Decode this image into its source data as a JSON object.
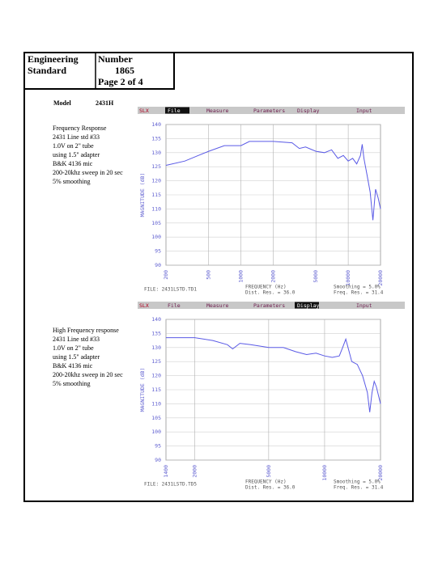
{
  "header": {
    "title": [
      "Engineering",
      "Standard"
    ],
    "number_label": "Number",
    "number": "1865",
    "page": "Page 2 of 4"
  },
  "model": {
    "label": "Model",
    "value": "2431H"
  },
  "descriptions": [
    [
      "Frequency Response",
      "2431 Line std #33",
      "1.0V on 2\" tube",
      "using 1.5\" adapter",
      "B&K 4136 mic",
      "200-20khz sweep in 20 sec",
      "5% smoothing"
    ],
    [
      "High Frequency response",
      "2431 Line std #33",
      "1.0V on 2\" tube",
      "using 1.5\" adapter",
      "B&K 4136 mic",
      "200-20khz sweep in 20 sec",
      "5% smoothing"
    ]
  ],
  "chart_data": [
    {
      "type": "line",
      "menu": [
        "SLX",
        "File",
        "Measure",
        "Parameters",
        "Display",
        "Input"
      ],
      "menu_active": 1,
      "y_label": "MAGNITUDE (dB)",
      "x_label": "FREQUENCY (Hz)",
      "file": "FILE: 2431LSTD.TD1",
      "dist_res": "Dist. Res. =    36.0",
      "smoothing": "Smoothing =    5.0%",
      "freq_res": "Freq. Res. =   31.4",
      "xscale": "log",
      "xlim": [
        200,
        20000
      ],
      "xticks": [
        200,
        500,
        1000,
        2000,
        5000,
        10000,
        20000
      ],
      "ylim": [
        90,
        140
      ],
      "yticks": [
        90,
        95,
        100,
        105,
        110,
        115,
        120,
        125,
        130,
        135,
        140
      ],
      "grid": true,
      "color": "#5a5ae6",
      "x": [
        200,
        300,
        400,
        500,
        700,
        1000,
        1200,
        2000,
        3000,
        3500,
        4000,
        5000,
        6000,
        7000,
        8000,
        9000,
        10000,
        11000,
        12000,
        13000,
        13500,
        14000,
        15000,
        16000,
        17000,
        18000,
        19000,
        20000
      ],
      "values": [
        125.5,
        127,
        129,
        130.5,
        132.5,
        132.5,
        134,
        134,
        133.5,
        131.5,
        132,
        130.5,
        130,
        131,
        128,
        129,
        127,
        128,
        126,
        129,
        133,
        128,
        122,
        116,
        106,
        117,
        114,
        110
      ]
    },
    {
      "type": "line",
      "menu": [
        "SLX",
        "File",
        "Measure",
        "Parameters",
        "Display",
        "Input"
      ],
      "menu_active": 4,
      "y_label": "MAGNITUDE (dB)",
      "x_label": "FREQUENCY (Hz)",
      "file": "FILE: 2431LSTD.TD5",
      "dist_res": "Dist. Res. =    36.0",
      "smoothing": "Smoothing =    5.0%",
      "freq_res": "Freq. Res. =   31.4",
      "xscale": "log",
      "xlim": [
        1400,
        20000
      ],
      "xticks": [
        1400,
        2000,
        5000,
        10000,
        20000
      ],
      "ylim": [
        90,
        140
      ],
      "yticks": [
        90,
        95,
        100,
        105,
        110,
        115,
        120,
        125,
        130,
        135,
        140
      ],
      "grid": true,
      "color": "#5a5ae6",
      "x": [
        1400,
        2000,
        2500,
        3000,
        3200,
        3500,
        4000,
        5000,
        6000,
        7000,
        8000,
        9000,
        10000,
        11000,
        12000,
        12500,
        13000,
        13500,
        14000,
        15000,
        16000,
        17000,
        17500,
        18000,
        18500,
        19000,
        20000
      ],
      "values": [
        133.5,
        133.5,
        132.5,
        131,
        129.5,
        131.5,
        131,
        130,
        130,
        128.5,
        127.5,
        128,
        127,
        126.5,
        127,
        130,
        133,
        129,
        125,
        124,
        120,
        114,
        107,
        114,
        118,
        116,
        110
      ]
    }
  ]
}
